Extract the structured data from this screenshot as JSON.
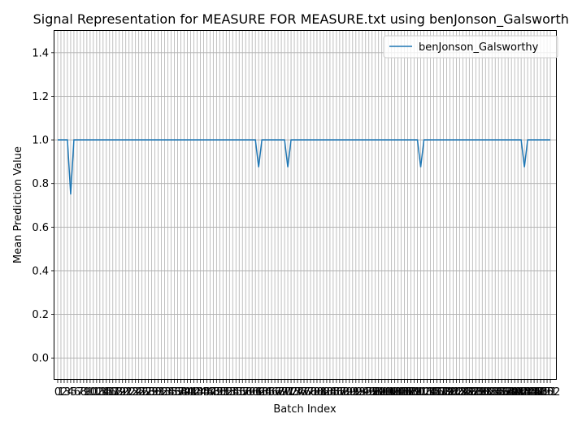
{
  "chart_data": {
    "type": "line",
    "title": "Signal Representation for MEASURE FOR MEASURE.txt using benJonson_Galsworthy",
    "xlabel": "Batch Index",
    "ylabel": "Mean Prediction Value",
    "xlim": [
      -1,
      154
    ],
    "ylim": [
      -0.1,
      1.5
    ],
    "x_count": 153,
    "yticks": [
      0.0,
      0.2,
      0.4,
      0.6,
      0.8,
      1.0,
      1.2,
      1.4
    ],
    "ytick_labels": [
      "0.0",
      "0.2",
      "0.4",
      "0.6",
      "0.8",
      "1.0",
      "1.2",
      "1.4"
    ],
    "grid": true,
    "legend_position": "top-right",
    "colors": {
      "series": "#1f77b4",
      "grid": "#b0b0b0"
    },
    "series": [
      {
        "name": "benJonson_Galsworthy",
        "default_value": 1.0,
        "overrides": [
          [
            4,
            0.75
          ],
          [
            62,
            0.875
          ],
          [
            71,
            0.875
          ],
          [
            112,
            0.875
          ],
          [
            144,
            0.875
          ]
        ]
      }
    ]
  }
}
